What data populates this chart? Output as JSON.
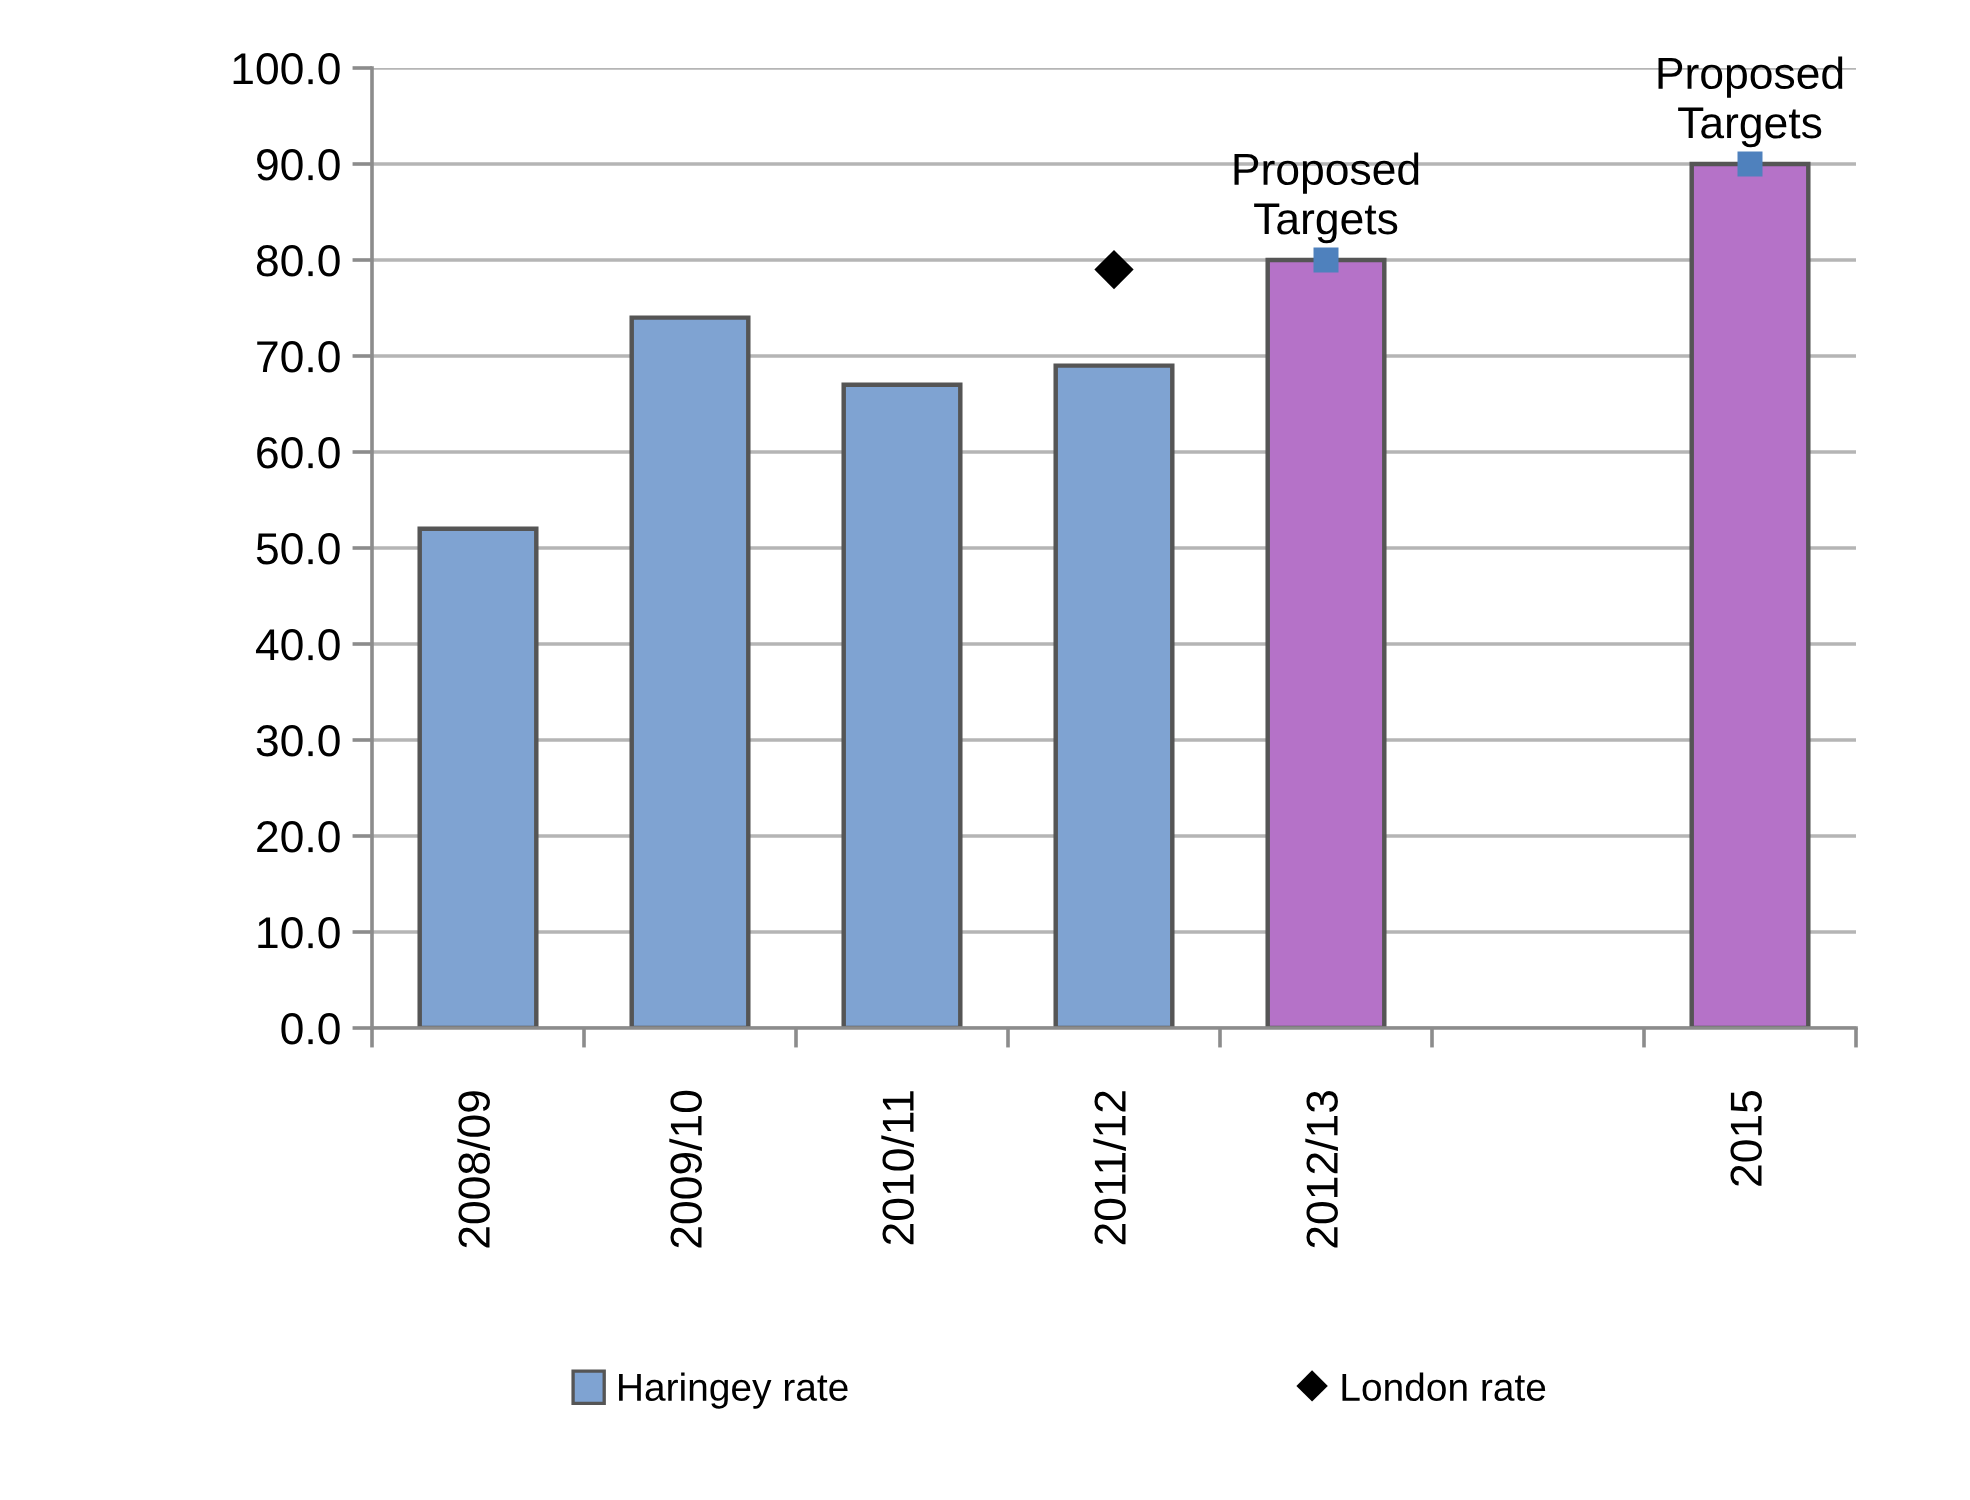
{
  "chart_data": {
    "type": "bar",
    "categories": [
      "2008/09",
      "2009/10",
      "2010/11",
      "2011/12",
      "2012/13",
      null,
      "2015"
    ],
    "series": [
      {
        "name": "Haringey rate",
        "color": "#7fa3d2",
        "colors": [
          "#7fa3d2",
          "#7fa3d2",
          "#7fa3d2",
          "#7fa3d2",
          "#b572c8",
          "#b572c8",
          "#b572c8"
        ],
        "values": [
          52,
          74,
          67,
          69,
          80,
          null,
          90
        ]
      },
      {
        "name": "London rate",
        "type": "scatter",
        "color": "#000000",
        "marker": "diamond",
        "values": [
          null,
          null,
          null,
          79,
          null,
          null,
          null
        ]
      },
      {
        "type": "scatter",
        "color": "#4f81bd",
        "marker": "square",
        "values": [
          null,
          null,
          null,
          null,
          80,
          null,
          90
        ]
      }
    ],
    "ylim": [
      0,
      100
    ],
    "yticks": [
      {
        "value": 0,
        "label": "0.0"
      },
      {
        "value": 10,
        "label": "10.0"
      },
      {
        "value": 20,
        "label": "20.0"
      },
      {
        "value": 30,
        "label": "30.0"
      },
      {
        "value": 40,
        "label": "40.0"
      },
      {
        "value": 50,
        "label": "50.0"
      },
      {
        "value": 60,
        "label": "60.0"
      },
      {
        "value": 70,
        "label": "70.0"
      },
      {
        "value": 80,
        "label": "80.0"
      },
      {
        "value": 90,
        "label": "90.0"
      },
      {
        "value": 100,
        "label": "100.0"
      }
    ],
    "grid": "y",
    "legend": "bottom",
    "annotations": [
      {
        "text": "Proposed\nTargets",
        "x": "2012/13",
        "y": 80
      },
      {
        "text": "Proposed\nTargets",
        "x": "2015",
        "y": 90
      }
    ]
  }
}
